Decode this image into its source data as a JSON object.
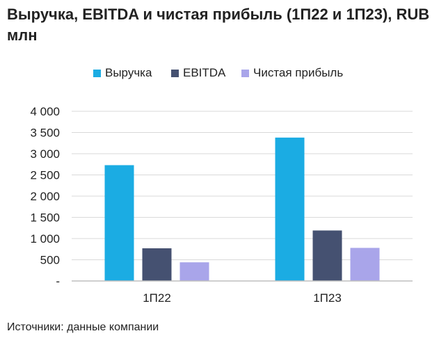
{
  "chart_data": {
    "type": "bar",
    "title": "Выручка, EBITDA и чистая прибыль (1П22 и 1П23), RUB млн",
    "categories": [
      "1П22",
      "1П23"
    ],
    "series": [
      {
        "name": "Выручка",
        "color": "#1bace3",
        "values": [
          2730,
          3380
        ]
      },
      {
        "name": "EBITDA",
        "color": "#455171",
        "values": [
          770,
          1190
        ]
      },
      {
        "name": "Чистая прибыль",
        "color": "#a9a5ea",
        "values": [
          440,
          780
        ]
      }
    ],
    "ylim": [
      0,
      4000
    ],
    "yticks": [
      0,
      500,
      1000,
      1500,
      2000,
      2500,
      3000,
      3500,
      4000
    ],
    "ytick_labels": [
      "-",
      "500",
      "1 000",
      "1 500",
      "2 000",
      "2 500",
      "3 000",
      "3 500",
      "4 000"
    ],
    "xlabel": "",
    "ylabel": "",
    "grid": true,
    "legend_position": "top-center"
  },
  "source": "Источники: данные компании"
}
